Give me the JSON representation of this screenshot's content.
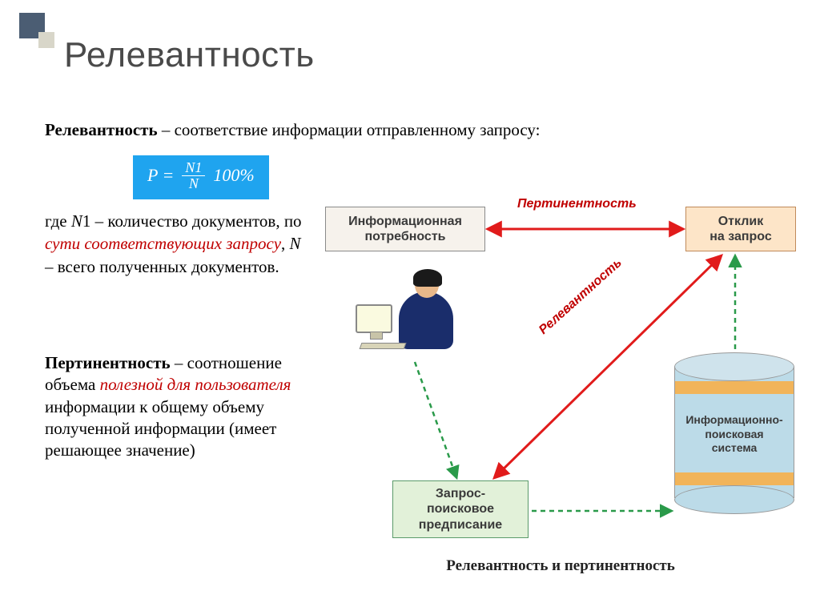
{
  "title": "Релевантность",
  "definition1": {
    "term": "Релевантность",
    "text": " – соответствие информации отправленному запросу:"
  },
  "formula": {
    "lhs": "P =",
    "numerator": "N1",
    "denominator": "N",
    "tail": "100%",
    "background": "#1fa4ef",
    "textColor": "#ffffff"
  },
  "where": {
    "prefix": "где ",
    "n1": "N",
    "one": "1",
    "n1desc": " – количество документов, по ",
    "red1": "сути соответствующих запросу",
    "mid": ", ",
    "n": "N",
    "ndesc": " – всего полученных документов."
  },
  "definition2": {
    "term": "Пертинентность",
    "pre": " – соотношение объема ",
    "red": "полезной для пользователя",
    "post": " информации к общему объему полученной информации (имеет решающее значение)"
  },
  "diagram": {
    "nodes": {
      "info_need": {
        "label": "Информационная\nпотребность",
        "bg": "#f6f2ec",
        "border": "#8a8a8a"
      },
      "response": {
        "label": "Отклик\nна запрос",
        "bg": "#fde5c8",
        "border": "#c08a5a"
      },
      "query": {
        "label": "Запрос-\nпоисковое\nпредписание",
        "bg": "#e2f1d9",
        "border": "#5a9a6a"
      },
      "db": {
        "label": "Информационно-\nпоисковая\nсистема",
        "bodyColor": "#bcdbe8",
        "bandColor": "#f1b45a"
      }
    },
    "edgeLabels": {
      "pertinence": "Пертинентность",
      "relevance": "Релевантность"
    },
    "arrowColors": {
      "red": "#e11b1b",
      "green": "#2a9a4a"
    },
    "caption": "Релевантность и пертинентность"
  }
}
